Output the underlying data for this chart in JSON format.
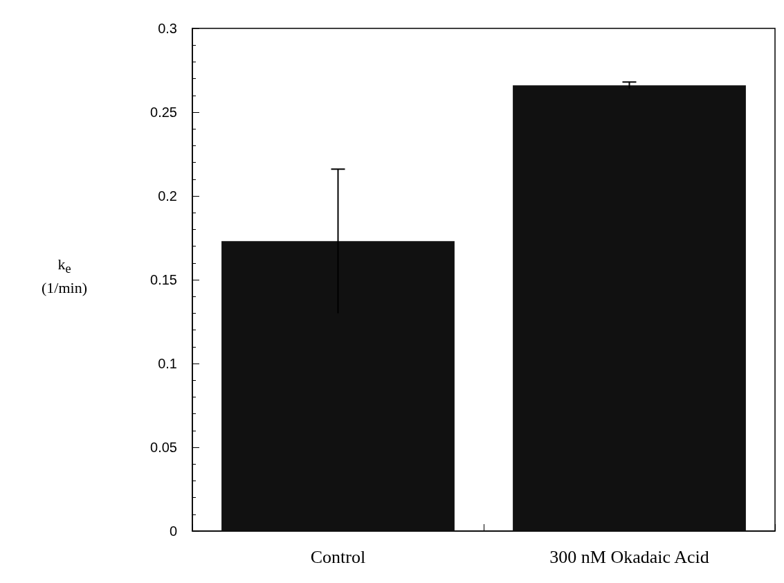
{
  "chart_data": {
    "type": "bar",
    "ylabel": "k$_{e}$\n(1/min)",
    "categories": [
      "Control",
      "300 nM Okadaic Acid"
    ],
    "values": [
      0.173,
      0.266
    ],
    "errors": [
      0.043,
      0.002
    ],
    "color": "#111111",
    "ylim": [
      0,
      0.3
    ],
    "yticks": [
      0,
      0.05,
      0.1,
      0.15,
      0.2,
      0.25,
      0.3
    ],
    "grid": false
  }
}
